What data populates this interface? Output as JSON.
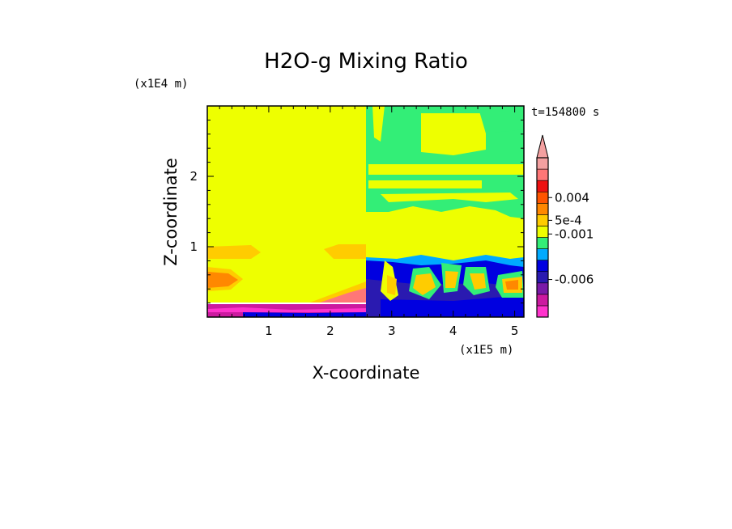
{
  "chart_data": {
    "type": "heatmap",
    "title": "H2O-g Mixing Ratio",
    "xlabel": "X-coordinate",
    "ylabel": "Z-coordinate",
    "x_unit": "(x1E5 m)",
    "y_unit": "(x1E4 m)",
    "time_label": "t=154800 s",
    "xlim": [
      0,
      5.15
    ],
    "ylim": [
      0,
      3.0
    ],
    "x_ticks": [
      1,
      2,
      3,
      4,
      5
    ],
    "y_ticks": [
      1,
      2
    ],
    "x_tick_labels": [
      "1",
      "2",
      "3",
      "4",
      "5"
    ],
    "y_tick_labels": [
      "1",
      "2"
    ],
    "colorbar": {
      "labels": [
        {
          "text": "0.004",
          "value": 0.004
        },
        {
          "text": "5e-4",
          "value": 0.0005
        },
        {
          "text": "-0.001",
          "value": -0.001
        },
        {
          "text": "-0.006",
          "value": -0.006
        }
      ],
      "colors": [
        "#ff33cc",
        "#cc1aa0",
        "#7a1aa8",
        "#2a1ab0",
        "#0000e0",
        "#00aaff",
        "#33ee77",
        "#eeff00",
        "#ffcc00",
        "#ff8800",
        "#ff5500",
        "#ee1111",
        "#ff7777",
        "#f4a0a0"
      ]
    },
    "regions": [
      {
        "name": "background",
        "color": "#eeff00"
      },
      {
        "name": "upper-right-moist",
        "color": "#33ee77"
      },
      {
        "name": "lower-right-dry",
        "color": "#0000e0"
      },
      {
        "name": "near-surface-left",
        "color": "#cc1aa0"
      },
      {
        "name": "left-warm-layer",
        "color": "#ff8800"
      }
    ]
  }
}
